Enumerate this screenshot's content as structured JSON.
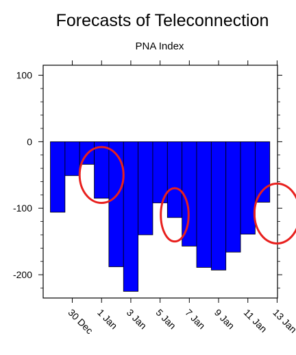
{
  "chart_data": {
    "type": "bar",
    "title": "Forecasts of Teleconnection",
    "subtitle": "PNA Index",
    "xlabel": "",
    "ylabel": "",
    "ylim": [
      -235,
      115
    ],
    "y_ticks": [
      100,
      0,
      -100,
      -200
    ],
    "y_tick_labels": [
      "100",
      "0",
      "-100",
      "-200"
    ],
    "x_tick_labels": [
      "30 Dec",
      "1 Jan",
      "3 Jan",
      "5 Jan",
      "7 Jan",
      "9 Jan",
      "11 Jan",
      "13 Jan"
    ],
    "categories": [
      "29 Dec",
      "30 Dec",
      "31 Dec",
      "1 Jan",
      "2 Jan",
      "3 Jan",
      "4 Jan",
      "5 Jan",
      "6 Jan",
      "7 Jan",
      "8 Jan",
      "9 Jan",
      "10 Jan",
      "11 Jan",
      "12 Jan",
      "13 Jan"
    ],
    "values": [
      -106,
      -51,
      -34,
      -85,
      -188,
      -225,
      -140,
      -92,
      -114,
      -157,
      -189,
      -193,
      -166,
      -139,
      -91,
      0
    ],
    "bar_color": "#0000ff",
    "grid": false,
    "legend": "none",
    "annotations": [
      {
        "shape": "ellipse",
        "color": "#e8201e",
        "center_x": "1 Jan",
        "center_y": -50,
        "rx_days": 1.5,
        "ry_value": 42
      },
      {
        "shape": "ellipse",
        "color": "#e8201e",
        "center_x": "6 Jan",
        "center_y": -110,
        "rx_days": 0.95,
        "ry_value": 40
      },
      {
        "shape": "ellipse",
        "color": "#e8201e",
        "center_x": "13 Jan",
        "center_y": -108,
        "rx_days": 1.55,
        "ry_value": 45
      }
    ]
  }
}
